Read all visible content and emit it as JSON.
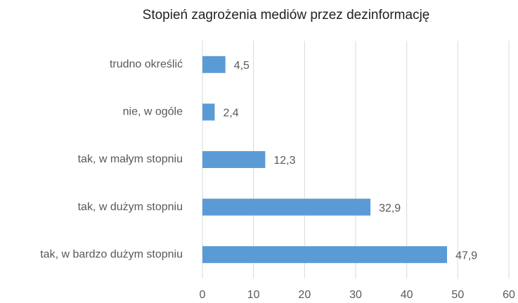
{
  "chart_data": {
    "type": "barh",
    "title": "Stopień zagrożenia mediów przez dezinformację",
    "categories": [
      "trudno określić",
      "nie, w ogóle",
      "tak, w małym stopniu",
      "tak, w dużym stopniu",
      "tak, w bardzo dużym stopniu"
    ],
    "values": [
      4.5,
      2.4,
      12.3,
      32.9,
      47.9
    ],
    "value_labels": [
      "4,5",
      "2,4",
      "12,3",
      "32,9",
      "47,9"
    ],
    "color": "#5b9bd5",
    "xlim": [
      0,
      60
    ],
    "xticks": [
      0,
      10,
      20,
      30,
      40,
      50,
      60
    ],
    "grid": true
  }
}
